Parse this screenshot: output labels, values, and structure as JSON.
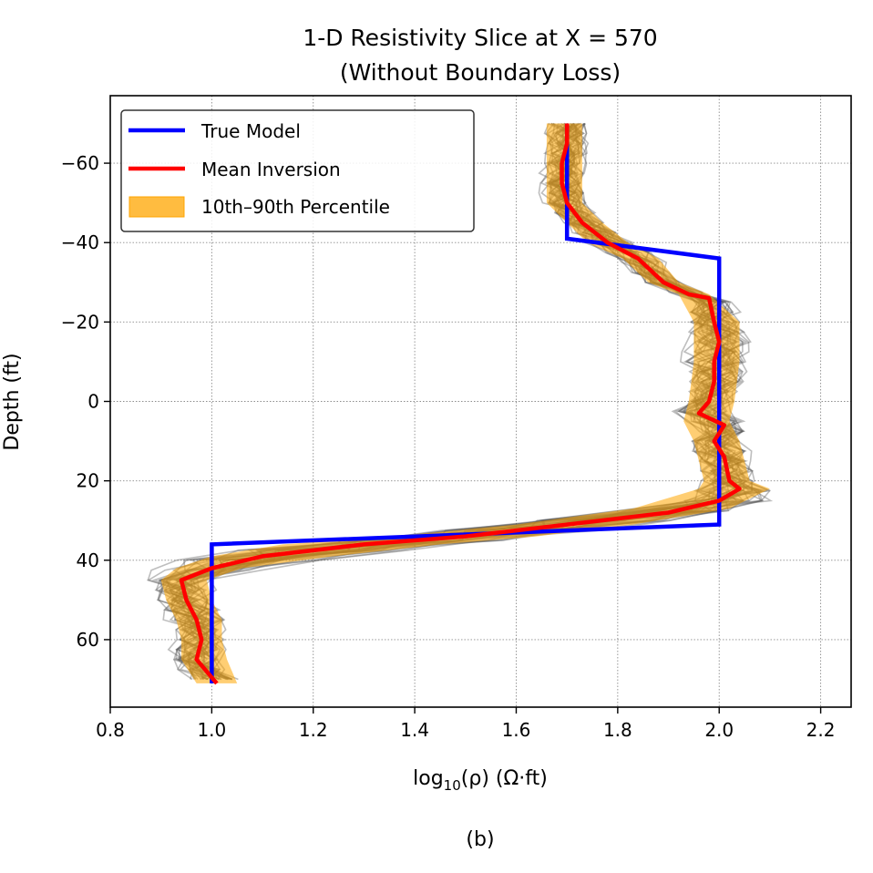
{
  "chart_data": {
    "type": "line",
    "title": "1-D Resistivity Slice at X = 570",
    "subtitle": "(Without Boundary Loss)",
    "xlabel_prefix": "log",
    "xlabel_sub": "10",
    "xlabel_rest": "(ρ) (Ω·ft)",
    "ylabel": "Depth (ft)",
    "caption": "(b)",
    "xlim": [
      0.8,
      2.26
    ],
    "ylim": [
      77,
      -77
    ],
    "y_inverted": true,
    "grid": true,
    "legend_position": "top-left",
    "xticks": [
      0.8,
      1.0,
      1.2,
      1.4,
      1.6,
      1.8,
      2.0,
      2.2
    ],
    "xtick_labels": [
      "0.8",
      "1.0",
      "1.2",
      "1.4",
      "1.6",
      "1.8",
      "2.0",
      "2.2"
    ],
    "yticks": [
      -60,
      -40,
      -20,
      0,
      20,
      40,
      60
    ],
    "ytick_labels": [
      "−60",
      "−40",
      "−20",
      "0",
      "20",
      "40",
      "60"
    ],
    "legend": [
      {
        "label": "True Model",
        "type": "line",
        "color": "#0000ff"
      },
      {
        "label": "Mean Inversion",
        "type": "line",
        "color": "#ff0000"
      },
      {
        "label": "10th–90th Percentile",
        "type": "patch",
        "color": "#ffa500"
      }
    ],
    "series": [
      {
        "name": "True Model",
        "color": "#0000ff",
        "points": [
          [
            1.7,
            -70
          ],
          [
            1.7,
            -41
          ],
          [
            2.0,
            -36
          ],
          [
            2.0,
            31
          ],
          [
            1.0,
            36
          ],
          [
            1.0,
            71
          ]
        ]
      },
      {
        "name": "Mean Inversion",
        "color": "#ff0000",
        "points": [
          [
            1.7,
            -70
          ],
          [
            1.7,
            -65
          ],
          [
            1.69,
            -60
          ],
          [
            1.69,
            -55
          ],
          [
            1.7,
            -50
          ],
          [
            1.73,
            -45
          ],
          [
            1.78,
            -40
          ],
          [
            1.84,
            -36
          ],
          [
            1.89,
            -30
          ],
          [
            1.94,
            -27
          ],
          [
            1.98,
            -26
          ],
          [
            1.99,
            -20
          ],
          [
            2.0,
            -15
          ],
          [
            1.99,
            -10
          ],
          [
            1.99,
            -5
          ],
          [
            1.98,
            0
          ],
          [
            1.96,
            3
          ],
          [
            2.01,
            6
          ],
          [
            1.99,
            10
          ],
          [
            2.01,
            14
          ],
          [
            2.02,
            20
          ],
          [
            2.04,
            22
          ],
          [
            2.0,
            25
          ],
          [
            1.9,
            28
          ],
          [
            1.7,
            31
          ],
          [
            1.5,
            34
          ],
          [
            1.3,
            36
          ],
          [
            1.1,
            39
          ],
          [
            1.0,
            42
          ],
          [
            0.94,
            45
          ],
          [
            0.95,
            50
          ],
          [
            0.97,
            55
          ],
          [
            0.98,
            60
          ],
          [
            0.97,
            65
          ],
          [
            1.01,
            71
          ]
        ]
      },
      {
        "name": "10th–90th Percentile",
        "color": "#ffa500",
        "lower": [
          [
            1.66,
            -70
          ],
          [
            1.66,
            -60
          ],
          [
            1.66,
            -50
          ],
          [
            1.7,
            -45
          ],
          [
            1.74,
            -40
          ],
          [
            1.81,
            -36
          ],
          [
            1.86,
            -30
          ],
          [
            1.92,
            -27
          ],
          [
            1.95,
            -20
          ],
          [
            1.95,
            -10
          ],
          [
            1.94,
            0
          ],
          [
            1.93,
            5
          ],
          [
            1.95,
            10
          ],
          [
            1.97,
            20
          ],
          [
            1.96,
            22
          ],
          [
            1.83,
            27
          ],
          [
            1.6,
            31
          ],
          [
            1.36,
            34
          ],
          [
            1.14,
            36
          ],
          [
            1.0,
            39
          ],
          [
            0.93,
            42
          ],
          [
            0.9,
            45
          ],
          [
            0.91,
            50
          ],
          [
            0.93,
            55
          ],
          [
            0.94,
            60
          ],
          [
            0.94,
            65
          ],
          [
            0.97,
            71
          ]
        ],
        "upper": [
          [
            1.73,
            -70
          ],
          [
            1.73,
            -60
          ],
          [
            1.73,
            -50
          ],
          [
            1.77,
            -45
          ],
          [
            1.82,
            -40
          ],
          [
            1.88,
            -36
          ],
          [
            1.92,
            -30
          ],
          [
            1.98,
            -27
          ],
          [
            2.04,
            -20
          ],
          [
            2.04,
            -10
          ],
          [
            2.03,
            0
          ],
          [
            2.02,
            5
          ],
          [
            2.04,
            10
          ],
          [
            2.06,
            20
          ],
          [
            2.1,
            22
          ],
          [
            2.02,
            27
          ],
          [
            1.83,
            31
          ],
          [
            1.64,
            34
          ],
          [
            1.45,
            36
          ],
          [
            1.24,
            39
          ],
          [
            1.06,
            42
          ],
          [
            0.99,
            45
          ],
          [
            1.0,
            50
          ],
          [
            1.02,
            55
          ],
          [
            1.02,
            60
          ],
          [
            1.03,
            65
          ],
          [
            1.05,
            71
          ]
        ]
      }
    ]
  }
}
